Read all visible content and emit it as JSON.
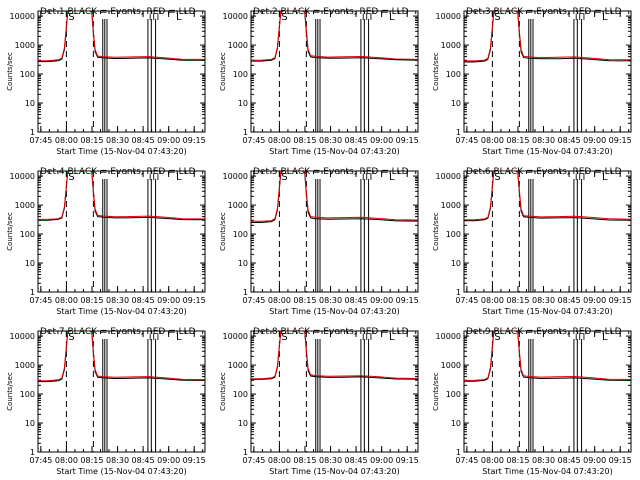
{
  "layout": {
    "rows": 3,
    "cols": 3
  },
  "common": {
    "xlabel": "Start Time (15-Nov-04 07:43:20)",
    "ylabel": "Counts/sec",
    "title_suffix": " BLACK = Events, RED = LLD",
    "x_tick_labels": [
      "07:45",
      "08:00",
      "08:15",
      "08:30",
      "08:45",
      "09:00",
      "09:15"
    ],
    "x_tick_minutes": [
      1.67,
      16.67,
      31.67,
      46.67,
      61.67,
      76.67,
      91.67
    ],
    "xlim_minutes": [
      0,
      98
    ],
    "y_tick_labels": [
      "1",
      "10",
      "100",
      "1000",
      "10000"
    ],
    "y_tick_values": [
      1,
      10,
      100,
      1000,
      10000
    ],
    "ylim": [
      1,
      15000
    ],
    "y_scale": "log",
    "grid": false,
    "series_colors": {
      "events": "#000000",
      "lld": "#e00000"
    },
    "markers": {
      "S": {
        "label": "S",
        "minute": 16.67
      },
      "I_labels": [
        "I",
        "I",
        "I"
      ],
      "L": {
        "label": "L",
        "minute": 81.0
      }
    },
    "vertical_lines_dashed": [
      16.67,
      32.5
    ],
    "vertical_lines_solid": [
      38.0,
      39.2,
      40.5,
      64.5,
      66.5,
      69.0
    ]
  },
  "chart_data": [
    {
      "type": "line",
      "title": "Det 1",
      "x": [
        0,
        6,
        12,
        14,
        15.5,
        16.5,
        17.5,
        19,
        30,
        31.5,
        32.5,
        33.5,
        35,
        38,
        45,
        55,
        65,
        75,
        85,
        98
      ],
      "series": [
        {
          "name": "BLACK = Events",
          "values": [
            270,
            270,
            290,
            330,
            700,
            3000,
            14000,
            15000,
            15000,
            14000,
            2500,
            600,
            380,
            360,
            345,
            350,
            360,
            330,
            300,
            300
          ]
        },
        {
          "name": "RED = LLD",
          "values": [
            290,
            290,
            310,
            360,
            800,
            3500,
            15000,
            15000,
            15000,
            15000,
            3000,
            700,
            420,
            400,
            380,
            390,
            400,
            360,
            320,
            320
          ]
        }
      ]
    },
    {
      "type": "line",
      "title": "Det 2",
      "x": [
        0,
        6,
        12,
        14,
        15.5,
        16.5,
        17.5,
        19,
        30,
        31.5,
        32.5,
        33.5,
        35,
        38,
        45,
        55,
        65,
        75,
        85,
        98
      ],
      "series": [
        {
          "name": "BLACK = Events",
          "values": [
            280,
            280,
            300,
            340,
            750,
            3200,
            14000,
            15000,
            15000,
            14000,
            2600,
            600,
            390,
            370,
            350,
            355,
            365,
            340,
            310,
            300
          ]
        },
        {
          "name": "RED = LLD",
          "values": [
            300,
            300,
            320,
            370,
            850,
            3600,
            15000,
            15000,
            15000,
            15000,
            3100,
            720,
            430,
            410,
            385,
            395,
            405,
            370,
            330,
            320
          ]
        }
      ]
    },
    {
      "type": "line",
      "title": "Det 3",
      "x": [
        0,
        6,
        12,
        14,
        15.5,
        16.5,
        17.5,
        19,
        30,
        31.5,
        32.5,
        33.5,
        35,
        38,
        45,
        55,
        65,
        75,
        85,
        98
      ],
      "series": [
        {
          "name": "BLACK = Events",
          "values": [
            260,
            260,
            280,
            320,
            680,
            2900,
            13500,
            15000,
            15000,
            13500,
            2400,
            580,
            370,
            350,
            335,
            340,
            350,
            320,
            290,
            285
          ]
        },
        {
          "name": "RED = LLD",
          "values": [
            285,
            285,
            300,
            350,
            780,
            3400,
            15000,
            15000,
            15000,
            15000,
            2900,
            690,
            410,
            390,
            370,
            380,
            390,
            350,
            315,
            310
          ]
        }
      ]
    },
    {
      "type": "line",
      "title": "Det 4",
      "x": [
        0,
        6,
        12,
        14,
        15.5,
        16.5,
        17.5,
        19,
        30,
        31.5,
        32.5,
        33.5,
        35,
        38,
        45,
        55,
        65,
        75,
        85,
        98
      ],
      "series": [
        {
          "name": "BLACK = Events",
          "values": [
            300,
            300,
            320,
            360,
            780,
            3300,
            14500,
            15000,
            15000,
            14500,
            2700,
            620,
            400,
            380,
            360,
            365,
            375,
            345,
            315,
            310
          ]
        },
        {
          "name": "RED = LLD",
          "values": [
            320,
            320,
            340,
            390,
            880,
            3700,
            15000,
            15000,
            15000,
            15000,
            3200,
            740,
            440,
            420,
            395,
            405,
            415,
            380,
            340,
            330
          ]
        }
      ]
    },
    {
      "type": "line",
      "title": "Det 5",
      "x": [
        0,
        6,
        12,
        14,
        15.5,
        16.5,
        17.5,
        19,
        30,
        31.5,
        32.5,
        33.5,
        35,
        38,
        45,
        55,
        65,
        75,
        85,
        98
      ],
      "series": [
        {
          "name": "BLACK = Events",
          "values": [
            250,
            250,
            270,
            310,
            660,
            2800,
            13000,
            15000,
            15000,
            13000,
            2300,
            560,
            360,
            340,
            325,
            330,
            340,
            315,
            285,
            280
          ]
        },
        {
          "name": "RED = LLD",
          "values": [
            275,
            275,
            290,
            340,
            760,
            3300,
            15000,
            15000,
            15000,
            15000,
            2800,
            670,
            400,
            380,
            360,
            370,
            380,
            345,
            310,
            305
          ]
        }
      ]
    },
    {
      "type": "line",
      "title": "Det 6",
      "x": [
        0,
        6,
        12,
        14,
        15.5,
        16.5,
        17.5,
        19,
        30,
        31.5,
        32.5,
        33.5,
        35,
        38,
        45,
        55,
        65,
        75,
        85,
        98
      ],
      "series": [
        {
          "name": "BLACK = Events",
          "values": [
            290,
            290,
            310,
            350,
            760,
            3200,
            14000,
            15000,
            15000,
            14000,
            2600,
            610,
            395,
            375,
            355,
            360,
            370,
            340,
            305,
            300
          ]
        },
        {
          "name": "RED = LLD",
          "values": [
            310,
            310,
            330,
            380,
            860,
            3600,
            15000,
            15000,
            15000,
            15000,
            3100,
            730,
            435,
            415,
            390,
            400,
            410,
            375,
            335,
            325
          ]
        }
      ]
    },
    {
      "type": "line",
      "title": "Det 7",
      "x": [
        0,
        6,
        12,
        14,
        15.5,
        16.5,
        17.5,
        19,
        30,
        31.5,
        32.5,
        33.5,
        35,
        38,
        45,
        55,
        65,
        75,
        85,
        98
      ],
      "series": [
        {
          "name": "BLACK = Events",
          "values": [
            270,
            270,
            290,
            330,
            700,
            3000,
            14000,
            15000,
            15000,
            14000,
            2500,
            600,
            380,
            360,
            345,
            350,
            360,
            330,
            300,
            295
          ]
        },
        {
          "name": "RED = LLD",
          "values": [
            290,
            290,
            310,
            360,
            800,
            3500,
            15000,
            15000,
            15000,
            15000,
            3000,
            700,
            420,
            400,
            380,
            390,
            400,
            360,
            320,
            315
          ]
        }
      ]
    },
    {
      "type": "line",
      "title": "Det 8",
      "x": [
        0,
        6,
        12,
        14,
        15.5,
        16.5,
        17.5,
        19,
        30,
        31.5,
        32.5,
        33.5,
        35,
        38,
        45,
        55,
        65,
        75,
        85,
        98
      ],
      "series": [
        {
          "name": "BLACK = Events",
          "values": [
            320,
            320,
            340,
            380,
            820,
            3400,
            14500,
            15000,
            15000,
            14500,
            2800,
            650,
            420,
            395,
            375,
            380,
            390,
            360,
            330,
            325
          ]
        },
        {
          "name": "RED = LLD",
          "values": [
            340,
            340,
            360,
            410,
            920,
            3800,
            15000,
            15000,
            15000,
            15000,
            3300,
            760,
            460,
            435,
            410,
            420,
            430,
            395,
            355,
            345
          ]
        }
      ]
    },
    {
      "type": "line",
      "title": "Det 9",
      "x": [
        0,
        6,
        12,
        14,
        15.5,
        16.5,
        17.5,
        19,
        30,
        31.5,
        32.5,
        33.5,
        35,
        38,
        45,
        55,
        65,
        75,
        85,
        98
      ],
      "series": [
        {
          "name": "BLACK = Events",
          "values": [
            275,
            275,
            295,
            335,
            710,
            3050,
            14000,
            15000,
            15000,
            14000,
            2500,
            600,
            385,
            365,
            345,
            350,
            360,
            330,
            300,
            295
          ]
        },
        {
          "name": "RED = LLD",
          "values": [
            295,
            295,
            315,
            365,
            810,
            3550,
            15000,
            15000,
            15000,
            15000,
            3000,
            705,
            425,
            405,
            385,
            395,
            405,
            365,
            325,
            318
          ]
        }
      ]
    }
  ]
}
